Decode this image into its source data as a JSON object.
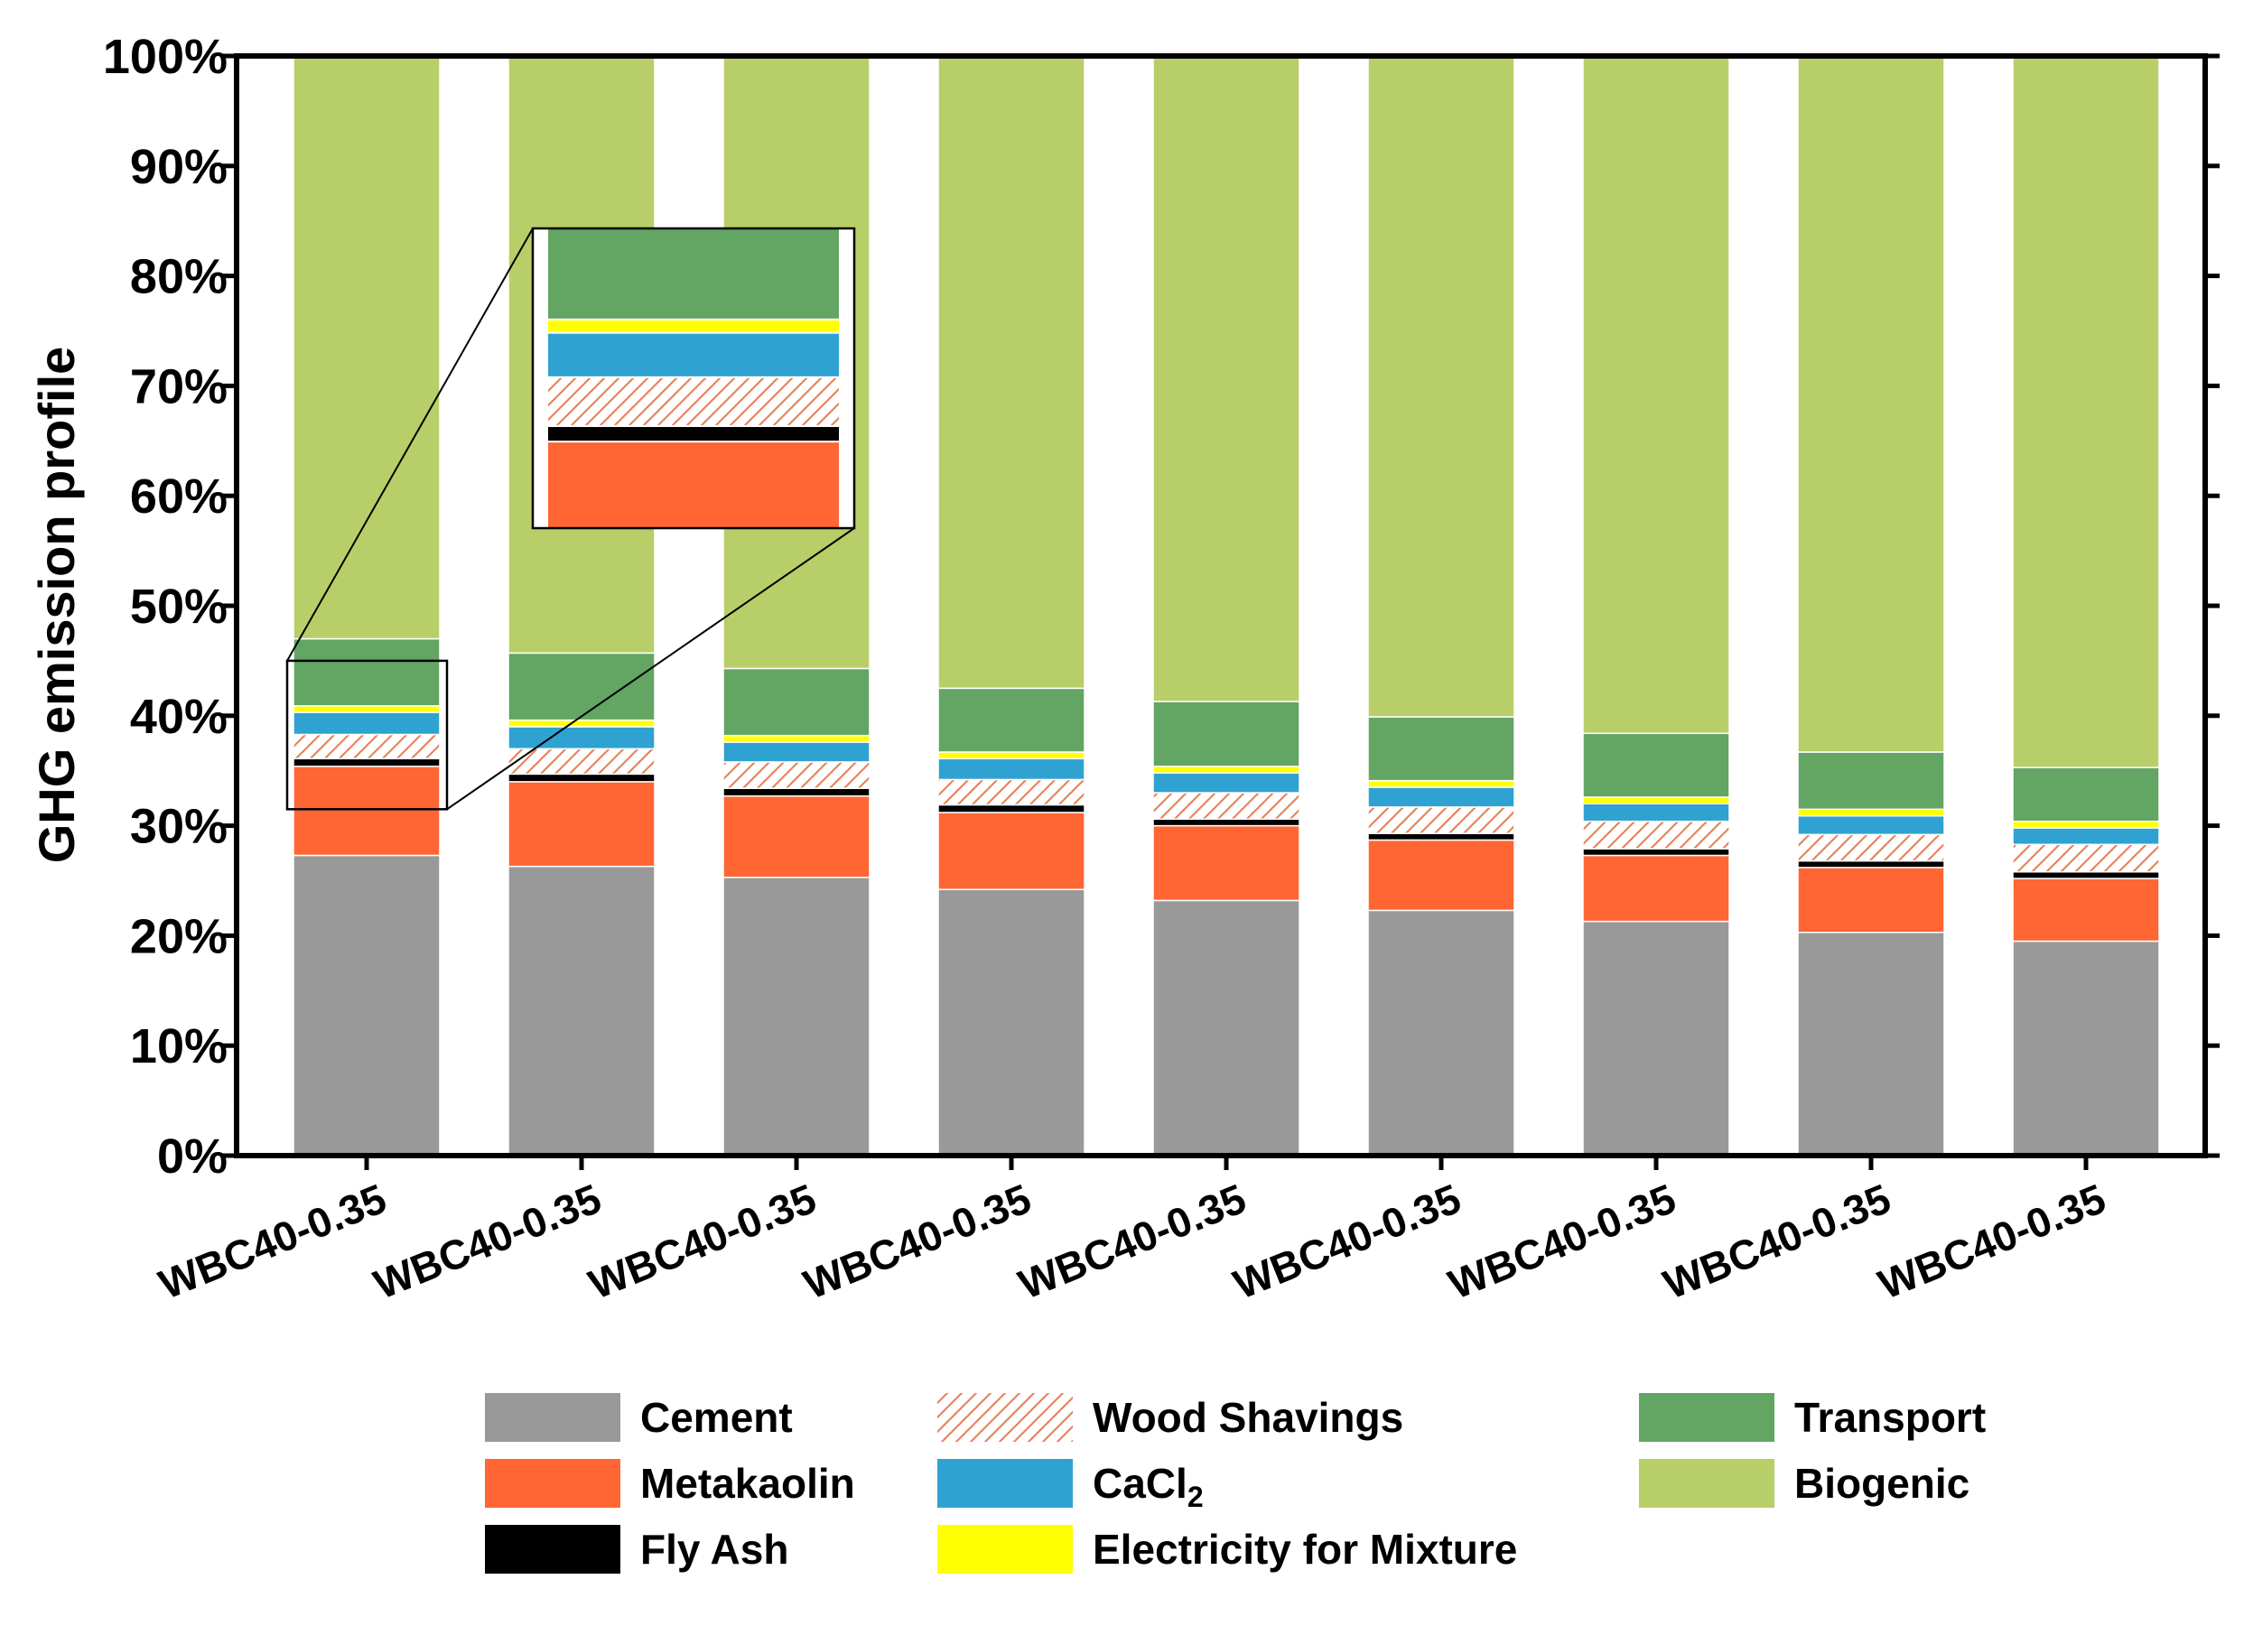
{
  "chart_data": {
    "type": "bar",
    "stacked": true,
    "ylabel": "GHG emission profile",
    "xlabel": "",
    "ylim": [
      0,
      100
    ],
    "y_ticks": [
      "0%",
      "10%",
      "20%",
      "30%",
      "40%",
      "50%",
      "60%",
      "70%",
      "80%",
      "90%",
      "100%"
    ],
    "categories": [
      "WBC40-0.35",
      "WBC40-0.35",
      "WBC40-0.35",
      "WBC40-0.35",
      "WBC40-0.35",
      "WBC40-0.35",
      "WBC40-0.35",
      "WBC40-0.35",
      "WBC40-0.35"
    ],
    "series": [
      {
        "name": "Cement",
        "color": "#999999",
        "pattern": "solid",
        "values": [
          27.3,
          26.3,
          25.3,
          24.2,
          23.2,
          22.3,
          21.3,
          20.3,
          19.5
        ]
      },
      {
        "name": "Metakaolin",
        "color": "#FF6633",
        "pattern": "solid",
        "values": [
          8.1,
          7.7,
          7.4,
          7.0,
          6.8,
          6.4,
          6.0,
          5.9,
          5.7
        ]
      },
      {
        "name": "Fly Ash",
        "color": "#000000",
        "pattern": "solid",
        "values": [
          0.7,
          0.7,
          0.7,
          0.7,
          0.6,
          0.6,
          0.6,
          0.6,
          0.6
        ]
      },
      {
        "name": "Wood Shavings",
        "color": "#E8845C",
        "pattern": "hatch",
        "values": [
          2.2,
          2.3,
          2.4,
          2.3,
          2.4,
          2.4,
          2.5,
          2.4,
          2.5
        ]
      },
      {
        "name": "CaCl",
        "subscript": "2",
        "color": "#2FA2D1",
        "pattern": "solid",
        "values": [
          2.0,
          2.0,
          1.8,
          1.9,
          1.8,
          1.8,
          1.6,
          1.7,
          1.5
        ]
      },
      {
        "name": "Electricity for Mixture",
        "color": "#FFFF00",
        "pattern": "solid",
        "values": [
          0.6,
          0.6,
          0.6,
          0.6,
          0.6,
          0.6,
          0.6,
          0.6,
          0.6
        ]
      },
      {
        "name": "Transport",
        "color": "#63A563",
        "pattern": "solid",
        "values": [
          6.1,
          6.1,
          6.1,
          5.8,
          5.9,
          5.8,
          5.8,
          5.2,
          4.9
        ]
      },
      {
        "name": "Biogenic",
        "color": "#B8CE68",
        "pattern": "solid",
        "values": [
          53.0,
          54.3,
          55.7,
          57.5,
          58.7,
          60.1,
          61.6,
          63.3,
          64.7
        ]
      }
    ],
    "legend_position": "bottom",
    "inset": {
      "description": "zoom of first bar 31-45%",
      "source_category_index": 0,
      "range": [
        31.5,
        45.0
      ]
    }
  }
}
